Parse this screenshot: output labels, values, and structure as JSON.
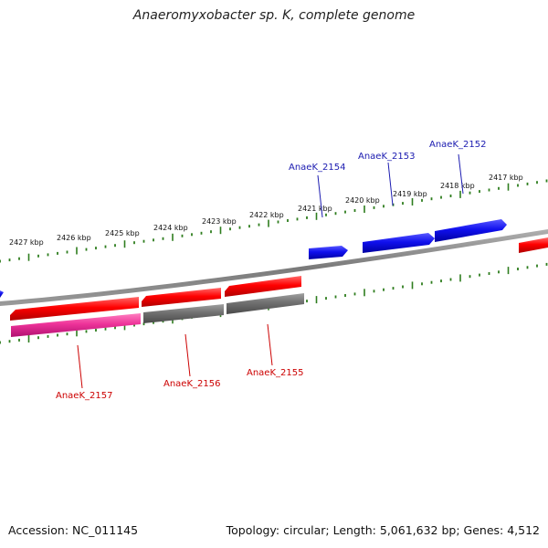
{
  "title": "Anaeromyxobacter sp. K, complete genome",
  "footer": {
    "accession": "Accession: NC_011145",
    "summary": "Topology: circular; Length: 5,061,632 bp; Genes: 4,512"
  },
  "colors": {
    "backbone": "#808080",
    "tick": "#2e7d1e",
    "forward_gene": "#ff0000",
    "forward_highlight": "#1010ee",
    "reverse_gene": "#ff0000",
    "reverse_gray": "#6e6e6e",
    "reverse_pink": "#ee3399",
    "label_red": "#cc0000",
    "label_blue": "#1a1ab0"
  },
  "ruler": {
    "unit": "kbp",
    "labels": [
      "2417 kbp",
      "2418 kbp",
      "2419 kbp",
      "2420 kbp",
      "2421 kbp",
      "2422 kbp",
      "2423 kbp",
      "2424 kbp",
      "2425 kbp",
      "2426 kbp",
      "2427 kbp"
    ]
  },
  "gene_labels": {
    "top": [
      "AnaeK_2152",
      "AnaeK_2153",
      "AnaeK_2154"
    ],
    "bottom": [
      "AnaeK_2155",
      "AnaeK_2156",
      "AnaeK_2157"
    ]
  }
}
